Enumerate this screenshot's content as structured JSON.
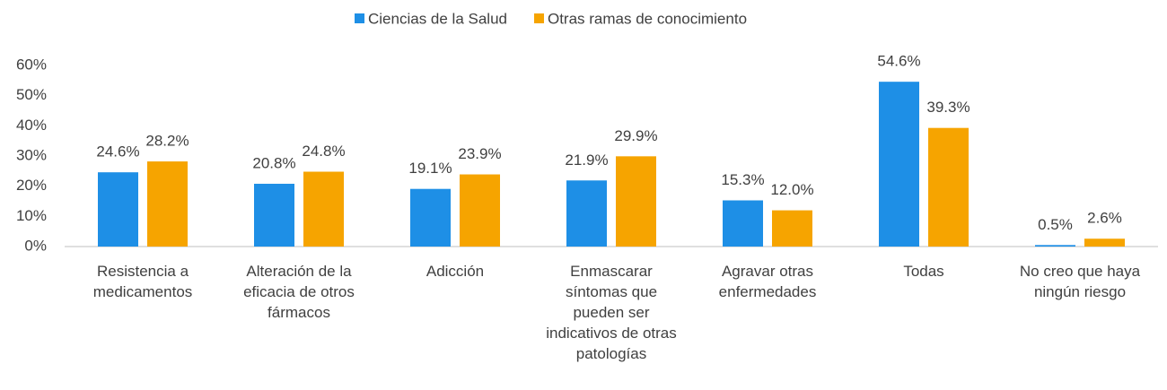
{
  "chart_data": {
    "type": "bar",
    "categories": [
      "Resistencia a medicamentos",
      "Alteración de la eficacia de otros fármacos",
      "Adicción",
      "Enmascarar síntomas que pueden ser indicativos de otras patologías",
      "Agravar otras enfermedades",
      "Todas",
      "No creo que haya ningún riesgo"
    ],
    "series": [
      {
        "name": "Ciencias de la Salud",
        "color": "#1e8fe6",
        "values": [
          24.6,
          20.8,
          19.1,
          21.9,
          15.3,
          54.6,
          0.5
        ],
        "value_labels": [
          "24.6%",
          "20.8%",
          "19.1%",
          "21.9%",
          "15.3%",
          "54.6%",
          "0.5%"
        ]
      },
      {
        "name": "Otras ramas de conocimiento",
        "color": "#f6a400",
        "values": [
          28.2,
          24.8,
          23.9,
          29.9,
          12.0,
          39.3,
          2.6
        ],
        "value_labels": [
          "28.2%",
          "24.8%",
          "23.9%",
          "29.9%",
          "12.0%",
          "39.3%",
          "2.6%"
        ]
      }
    ],
    "ylim": [
      0,
      60
    ],
    "yticks": [
      {
        "value": 0,
        "label": "0%"
      },
      {
        "value": 10,
        "label": "10%"
      },
      {
        "value": 20,
        "label": "20%"
      },
      {
        "value": 30,
        "label": "30%"
      },
      {
        "value": 40,
        "label": "40%"
      },
      {
        "value": 50,
        "label": "50%"
      },
      {
        "value": 60,
        "label": "60%"
      }
    ],
    "grid": false,
    "legend": "top"
  }
}
